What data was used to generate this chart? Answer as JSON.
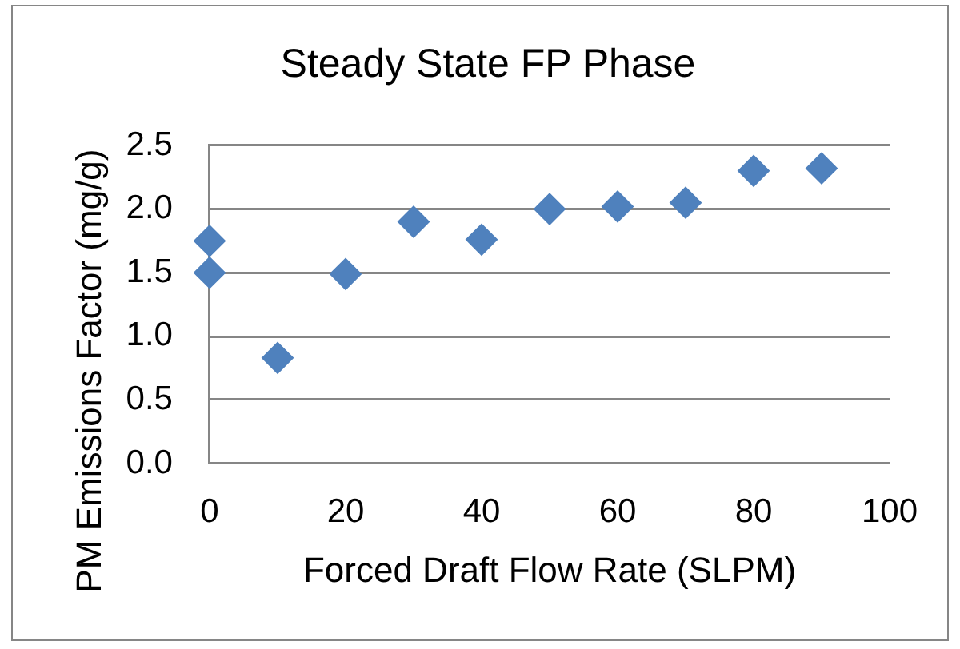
{
  "chart_data": {
    "type": "scatter",
    "title": "Steady State FP Phase",
    "xlabel": "Forced Draft Flow Rate (SLPM)",
    "ylabel": "PM Emissions Factor (mg/g)",
    "x": [
      0,
      0,
      10,
      20,
      30,
      40,
      50,
      60,
      70,
      80,
      90
    ],
    "values": [
      1.75,
      1.5,
      0.83,
      1.49,
      1.9,
      1.76,
      2.0,
      2.02,
      2.05,
      2.3,
      2.32
    ],
    "color": "#4f81bd",
    "marker": "diamond",
    "xlim": [
      0,
      100
    ],
    "xticks": [
      0,
      20,
      40,
      60,
      80,
      100
    ],
    "ylim": [
      0,
      2.5
    ],
    "yticks": [
      {
        "value": 0,
        "label": "0.0"
      },
      0.5,
      {
        "value": 1,
        "label": "1.0"
      },
      1.5,
      {
        "value": 2,
        "label": "2.0"
      },
      2.5
    ],
    "grid": "y",
    "legend": false
  }
}
